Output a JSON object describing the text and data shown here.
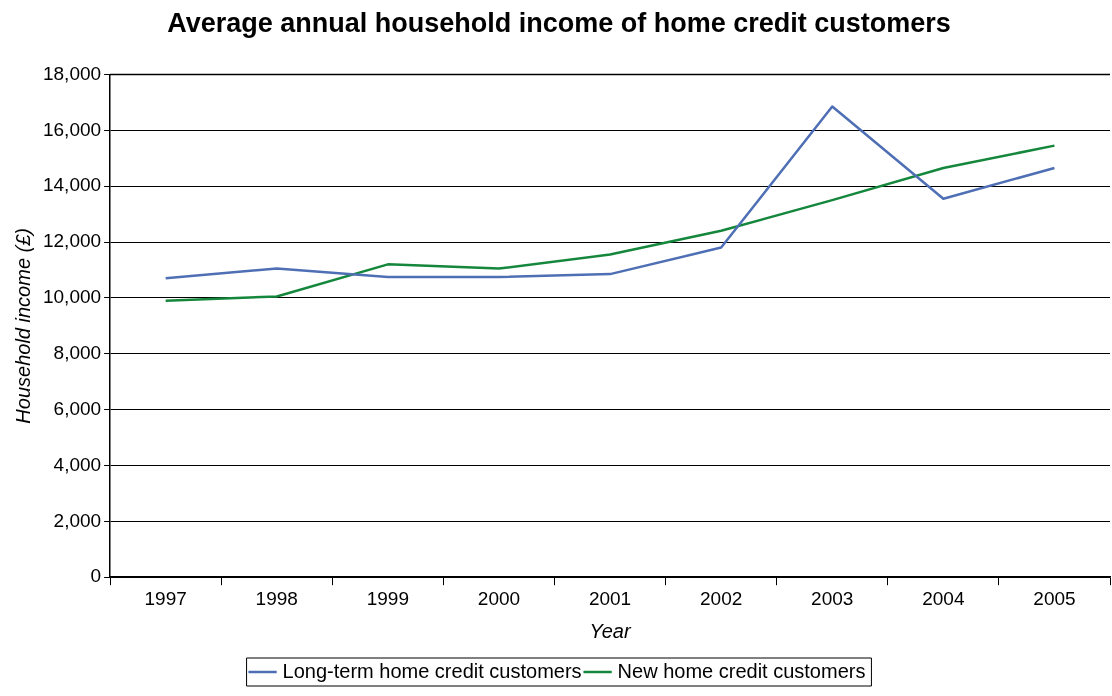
{
  "chart_data": {
    "type": "line",
    "title": "Average annual household income of home credit customers",
    "xlabel": "Year",
    "ylabel": "Household income (£)",
    "categories": [
      "1997",
      "1998",
      "1999",
      "2000",
      "2001",
      "2002",
      "2003",
      "2004",
      "2005"
    ],
    "series": [
      {
        "name": "Long-term home credit customers",
        "color": "#4f6fb5",
        "values": [
          10700,
          11050,
          10750,
          10750,
          10850,
          11800,
          16850,
          13550,
          14650
        ]
      },
      {
        "name": "New home credit customers",
        "color": "#14873c",
        "values": [
          9900,
          10050,
          11200,
          11050,
          11550,
          12400,
          13500,
          14650,
          15450
        ]
      }
    ],
    "ylim": [
      0,
      18000
    ],
    "yticks": [
      0,
      {
        "value": 2000,
        "label": "2,000"
      },
      {
        "value": 4000,
        "label": "4,000"
      },
      {
        "value": 6000,
        "label": "6,000"
      },
      {
        "value": 8000,
        "label": "8,000"
      },
      {
        "value": 10000,
        "label": "10,000"
      },
      {
        "value": 12000,
        "label": "12,000"
      },
      {
        "value": 14000,
        "label": "14,000"
      },
      {
        "value": 16000,
        "label": "16,000"
      },
      {
        "value": 18000,
        "label": "18,000"
      }
    ],
    "grid": "y",
    "legend": "bottom",
    "marker": "none",
    "line_style": "solid"
  }
}
